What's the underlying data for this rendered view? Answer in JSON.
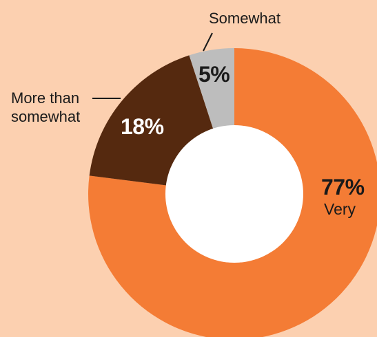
{
  "chart_data": {
    "type": "pie",
    "donut": true,
    "slices": [
      {
        "label": "Very",
        "value": 77,
        "display": "77%",
        "color": "#f47c35"
      },
      {
        "label": "More than somewhat",
        "label_line1": "More than",
        "label_line2": "somewhat",
        "value": 18,
        "display": "18%",
        "color": "#55290f"
      },
      {
        "label": "Somewhat",
        "value": 5,
        "display": "5%",
        "color": "#bdbdbd"
      }
    ],
    "center_color": "#ffffff",
    "background": "#fcd0b0"
  }
}
